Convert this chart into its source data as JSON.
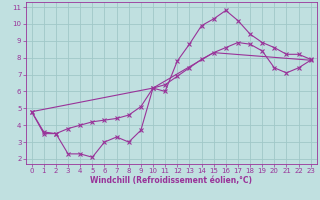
{
  "xlabel": "Windchill (Refroidissement éolien,°C)",
  "xlim": [
    -0.5,
    23.5
  ],
  "ylim": [
    1.7,
    11.3
  ],
  "xticks": [
    0,
    1,
    2,
    3,
    4,
    5,
    6,
    7,
    8,
    9,
    10,
    11,
    12,
    13,
    14,
    15,
    16,
    17,
    18,
    19,
    20,
    21,
    22,
    23
  ],
  "yticks": [
    2,
    3,
    4,
    5,
    6,
    7,
    8,
    9,
    10,
    11
  ],
  "bg_color": "#c0e0e0",
  "grid_color": "#a0c8c8",
  "line_color": "#993399",
  "line1_x": [
    0,
    1,
    2,
    3,
    4,
    5,
    6,
    7,
    8,
    9,
    10,
    11,
    12,
    13,
    14,
    15,
    16,
    17,
    18,
    19,
    20,
    21,
    22,
    23
  ],
  "line1_y": [
    4.8,
    3.5,
    3.5,
    2.3,
    2.3,
    2.1,
    3.0,
    3.3,
    3.0,
    3.7,
    6.2,
    6.0,
    7.8,
    8.8,
    9.9,
    10.3,
    10.8,
    10.2,
    9.4,
    8.9,
    8.6,
    8.2,
    8.2,
    7.9
  ],
  "line2_x": [
    0,
    1,
    2,
    3,
    4,
    5,
    6,
    7,
    8,
    9,
    10,
    11,
    12,
    13,
    14,
    15,
    16,
    17,
    18,
    19,
    20,
    21,
    22,
    23
  ],
  "line2_y": [
    4.8,
    3.6,
    3.5,
    3.8,
    4.0,
    4.2,
    4.3,
    4.4,
    4.6,
    5.1,
    6.2,
    6.4,
    6.9,
    7.4,
    7.9,
    8.3,
    8.6,
    8.9,
    8.8,
    8.4,
    7.4,
    7.1,
    7.4,
    7.85
  ],
  "line3_x": [
    0,
    10,
    15,
    23
  ],
  "line3_y": [
    4.8,
    6.2,
    8.3,
    7.85
  ]
}
